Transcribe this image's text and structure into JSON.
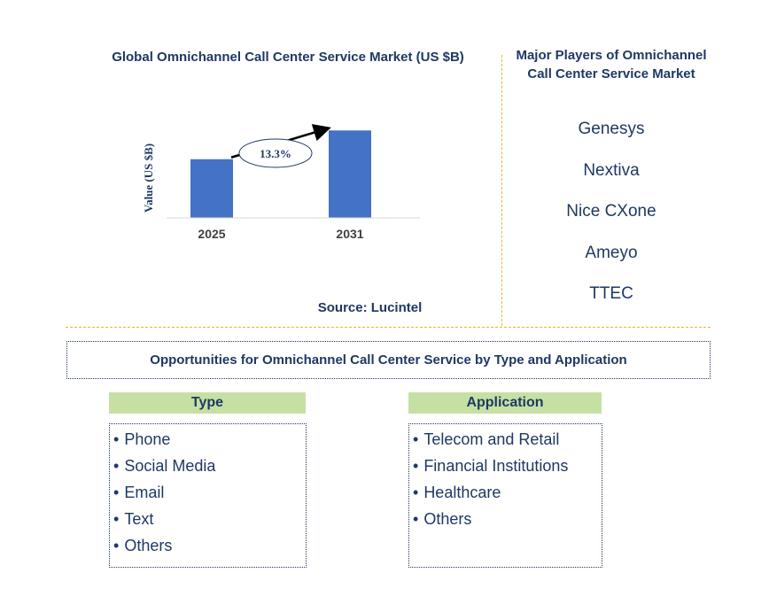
{
  "chart_data": {
    "type": "bar",
    "title": "Global Omnichannel Call Center Service Market (US $B)",
    "ylabel": "Value (US $B)",
    "xlabel": "",
    "categories": [
      "2025",
      "2031"
    ],
    "values": [
      1.0,
      1.49
    ],
    "ylim": [
      0,
      1.6
    ],
    "annotation": "13.3%",
    "bar_color": "#4472c4",
    "grid": false
  },
  "source": "Source: Lucintel",
  "players": {
    "title": "Major Players of Omnichannel Call Center Service Market",
    "items": [
      "Genesys",
      "Nextiva",
      "Nice CXone",
      "Ameyo",
      "TTEC"
    ]
  },
  "opportunities": {
    "title": "Opportunities for Omnichannel Call Center Service by Type and Application"
  },
  "type_column": {
    "header": "Type",
    "items": [
      "Phone",
      "Social Media",
      "Email",
      "Text",
      "Others"
    ]
  },
  "application_column": {
    "header": "Application",
    "items": [
      "Telecom and Retail",
      "Financial Institutions",
      "Healthcare",
      "Others"
    ]
  },
  "colors": {
    "text": "#1f3864",
    "bar": "#4472c4",
    "divider": "#f0b429",
    "header_bg": "#c6e0a4"
  }
}
